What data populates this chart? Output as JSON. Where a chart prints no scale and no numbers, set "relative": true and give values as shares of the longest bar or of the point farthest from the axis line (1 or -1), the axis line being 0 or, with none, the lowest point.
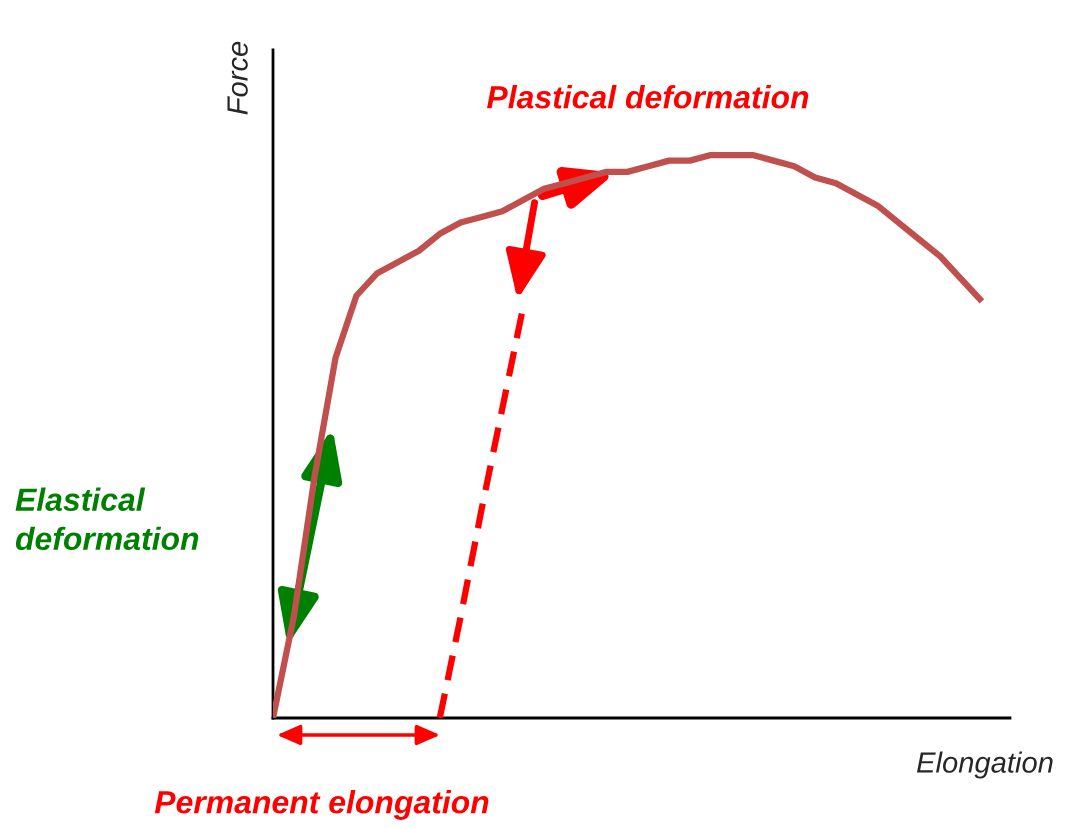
{
  "chart_data": {
    "type": "line",
    "relative": true,
    "xlabel": "Elongation",
    "ylabel": "Force",
    "categories": [
      null,
      null,
      null,
      null,
      null,
      null,
      null,
      null,
      null,
      null,
      null,
      null,
      null,
      null,
      null,
      null,
      null,
      null,
      null,
      null,
      null,
      null,
      null,
      null,
      null,
      null,
      null,
      null,
      null,
      null,
      null,
      null,
      null,
      null,
      null
    ],
    "series": [
      {
        "color": "#c0504d",
        "line_style": "solid",
        "values": [
          0,
          0.18,
          0.43,
          0.64,
          0.75,
          0.79,
          0.81,
          0.83,
          0.86,
          0.88,
          0.89,
          0.9,
          0.92,
          0.94,
          0.95,
          0.96,
          0.97,
          0.97,
          0.98,
          0.99,
          0.99,
          1.0,
          1.0,
          1.0,
          0.99,
          0.98,
          0.96,
          0.95,
          0.93,
          0.91,
          0.88,
          0.85,
          0.82,
          0.78,
          0.74
        ]
      },
      {
        "color": "#ff0000",
        "line_style": "dashed",
        "values": [
          null,
          null,
          null,
          null,
          null,
          null,
          null,
          null,
          0,
          0.18,
          0.37,
          0.55,
          0.73,
          null,
          null,
          null,
          null,
          null,
          null,
          null,
          null,
          null,
          null,
          null,
          null,
          null,
          null,
          null,
          null,
          null,
          null,
          null,
          null,
          null,
          null
        ]
      }
    ],
    "annotations": [
      "Plastical deformation",
      "Elastical deformation",
      "Permanent elongation"
    ],
    "legend": false,
    "tick_labels": false,
    "marker": "none"
  }
}
